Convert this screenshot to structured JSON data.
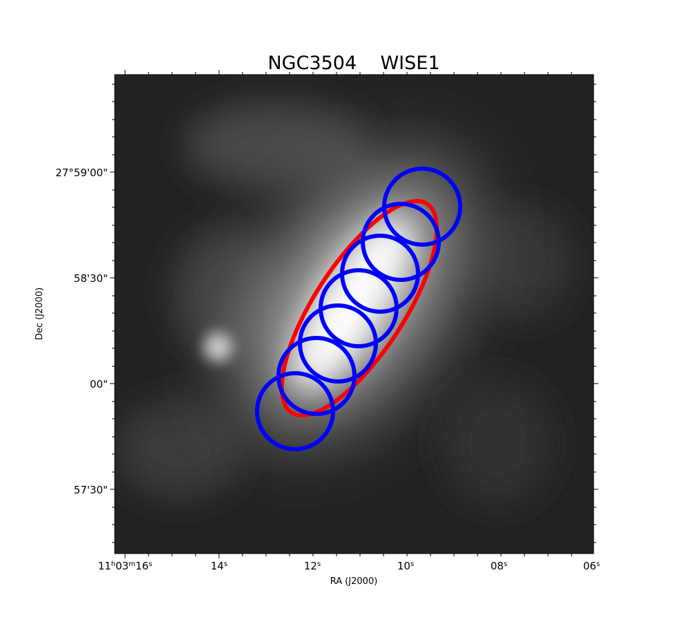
{
  "title": "NGC3504    WISE1",
  "xlabel": "RA (J2000)",
  "ylabel": "Dec (J2000)",
  "ra_ticks": [
    {
      "h": "11",
      "m": "03",
      "s": "16",
      "full": true
    },
    {
      "s": "14"
    },
    {
      "s": "12"
    },
    {
      "s": "10"
    },
    {
      "s": "08"
    },
    {
      "s": "06"
    }
  ],
  "dec_ticks": [
    "27°59'00\"",
    "58'30\"",
    "00\"",
    "57'30\""
  ],
  "colors": {
    "ellipse": "#ff0000",
    "apertures": "#0000ff",
    "image_dark": "#1c1c1c",
    "image_bright": "#ffffff"
  }
}
